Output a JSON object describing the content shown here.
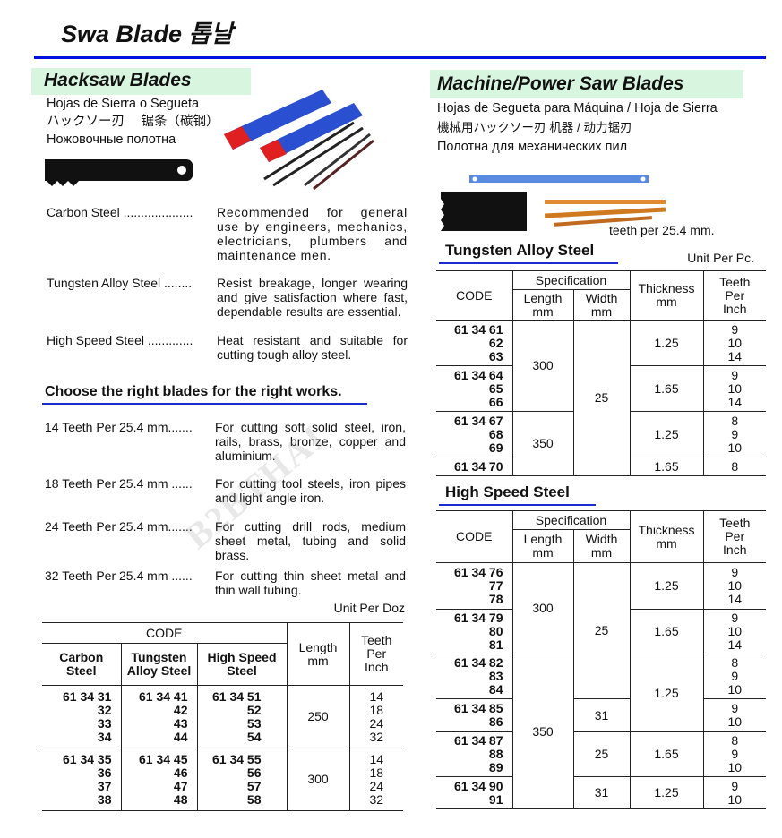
{
  "header": {
    "title": "Swa Blade 톱날"
  },
  "hacksaw": {
    "title": "Hacksaw Blades",
    "subtitles": [
      "Hojas de Sierra o Segueta",
      "ハックソー刃　 锯条（碳钢）",
      "Ножовочные полотна"
    ],
    "types": [
      {
        "label": "Carbon Steel ....................",
        "desc": "Recommended for general use by engineers, mechanics, electricians, plumbers and maintenance men."
      },
      {
        "label": "Tungsten Alloy Steel ........",
        "desc": "Resist breakage, longer wearing and give satisfaction where fast, dependable results are essential."
      },
      {
        "label": "High Speed Steel .............",
        "desc": "Heat resistant and suitable for cutting tough alloy steel."
      }
    ],
    "choose_title": "Choose the right blades for the right works.",
    "teeth_guide": [
      {
        "label": "14 Teeth Per 25.4 mm.......",
        "desc": "For cutting soft solid steel, iron, rails, brass, bronze, copper and aluminium."
      },
      {
        "label": "18 Teeth Per 25.4 mm ......",
        "desc": "For cutting tool steels, iron pipes and light angle iron."
      },
      {
        "label": "24 Teeth Per 25.4 mm.......",
        "desc": "For cutting drill rods, medium sheet metal, tubing and solid brass."
      },
      {
        "label": "32 Teeth Per 25.4 mm ......",
        "desc": "For cutting thin sheet metal and thin wall tubing."
      }
    ],
    "unit": "Unit Per Doz",
    "table": {
      "headers": {
        "code": "CODE",
        "carbon": "Carbon\nSteel",
        "tungsten": "Tungsten\nAlloy Steel",
        "hss": "High Speed\nSteel",
        "length": "Length\nmm",
        "teeth": "Teeth\nPer\nInch"
      },
      "rows": [
        {
          "carbon": "61 34 31\n32\n33\n34",
          "tungsten": "61 34 41\n42\n43\n44",
          "hss": "61 34 51\n52\n53\n54",
          "length": "250",
          "teeth": "14\n18\n24\n32"
        },
        {
          "carbon": "61 34 35\n36\n37\n38",
          "tungsten": "61 34 45\n46\n47\n48",
          "hss": "61 34 55\n56\n57\n58",
          "length": "300",
          "teeth": "14\n18\n24\n32"
        }
      ]
    }
  },
  "machine": {
    "title": "Machine/Power Saw Blades",
    "subtitles": [
      "Hojas de Segueta para Máquina / Hoja de Sierra",
      "機械用ハックソー刃 机器 / 动力锯刃",
      "Полотна для механических пил"
    ],
    "image_caption": "teeth per 25.4 mm.",
    "headers": {
      "code": "CODE",
      "spec": "Specification",
      "length": "Length\nmm",
      "width": "Width\nmm",
      "thickness": "Thickness\nmm",
      "teeth": "Teeth\nPer\nInch"
    },
    "tungsten": {
      "title": "Tungsten Alloy Steel",
      "unit": "Unit Per Pc.",
      "rows": [
        {
          "code": "61 34 61\n62\n63",
          "length": "300",
          "width": "25",
          "thickness": "1.25",
          "teeth": "9\n10\n14"
        },
        {
          "code": "61 34 64\n65\n66",
          "thickness": "1.65",
          "teeth": "9\n10\n14"
        },
        {
          "code": "61 34 67\n68\n69",
          "length": "350",
          "thickness": "1.25",
          "teeth": "8\n9\n10"
        },
        {
          "code": "61 34 70",
          "thickness": "1.65",
          "teeth": "8"
        }
      ]
    },
    "hss": {
      "title": "High Speed Steel",
      "rows": [
        {
          "code": "61 34 76\n77\n78",
          "length": "300",
          "width": "25",
          "thickness": "1.25",
          "teeth": "9\n10\n14"
        },
        {
          "code": "61 34 79\n80\n81",
          "thickness": "1.65",
          "teeth": "9\n10\n14"
        },
        {
          "code": "61 34 82\n83\n84",
          "length": "350",
          "thickness": "1.25",
          "teeth": "8\n9\n10"
        },
        {
          "code": "61 34 85\n86",
          "width": "31",
          "teeth": "9\n10"
        },
        {
          "code": "61 34 87\n88\n89",
          "width": "25",
          "thickness": "1.65",
          "teeth": "8\n9\n10"
        },
        {
          "code": "61 34 90\n91",
          "width": "31",
          "thickness": "1.25",
          "teeth": "9\n10"
        }
      ]
    }
  },
  "watermark": "B2BTHAI"
}
